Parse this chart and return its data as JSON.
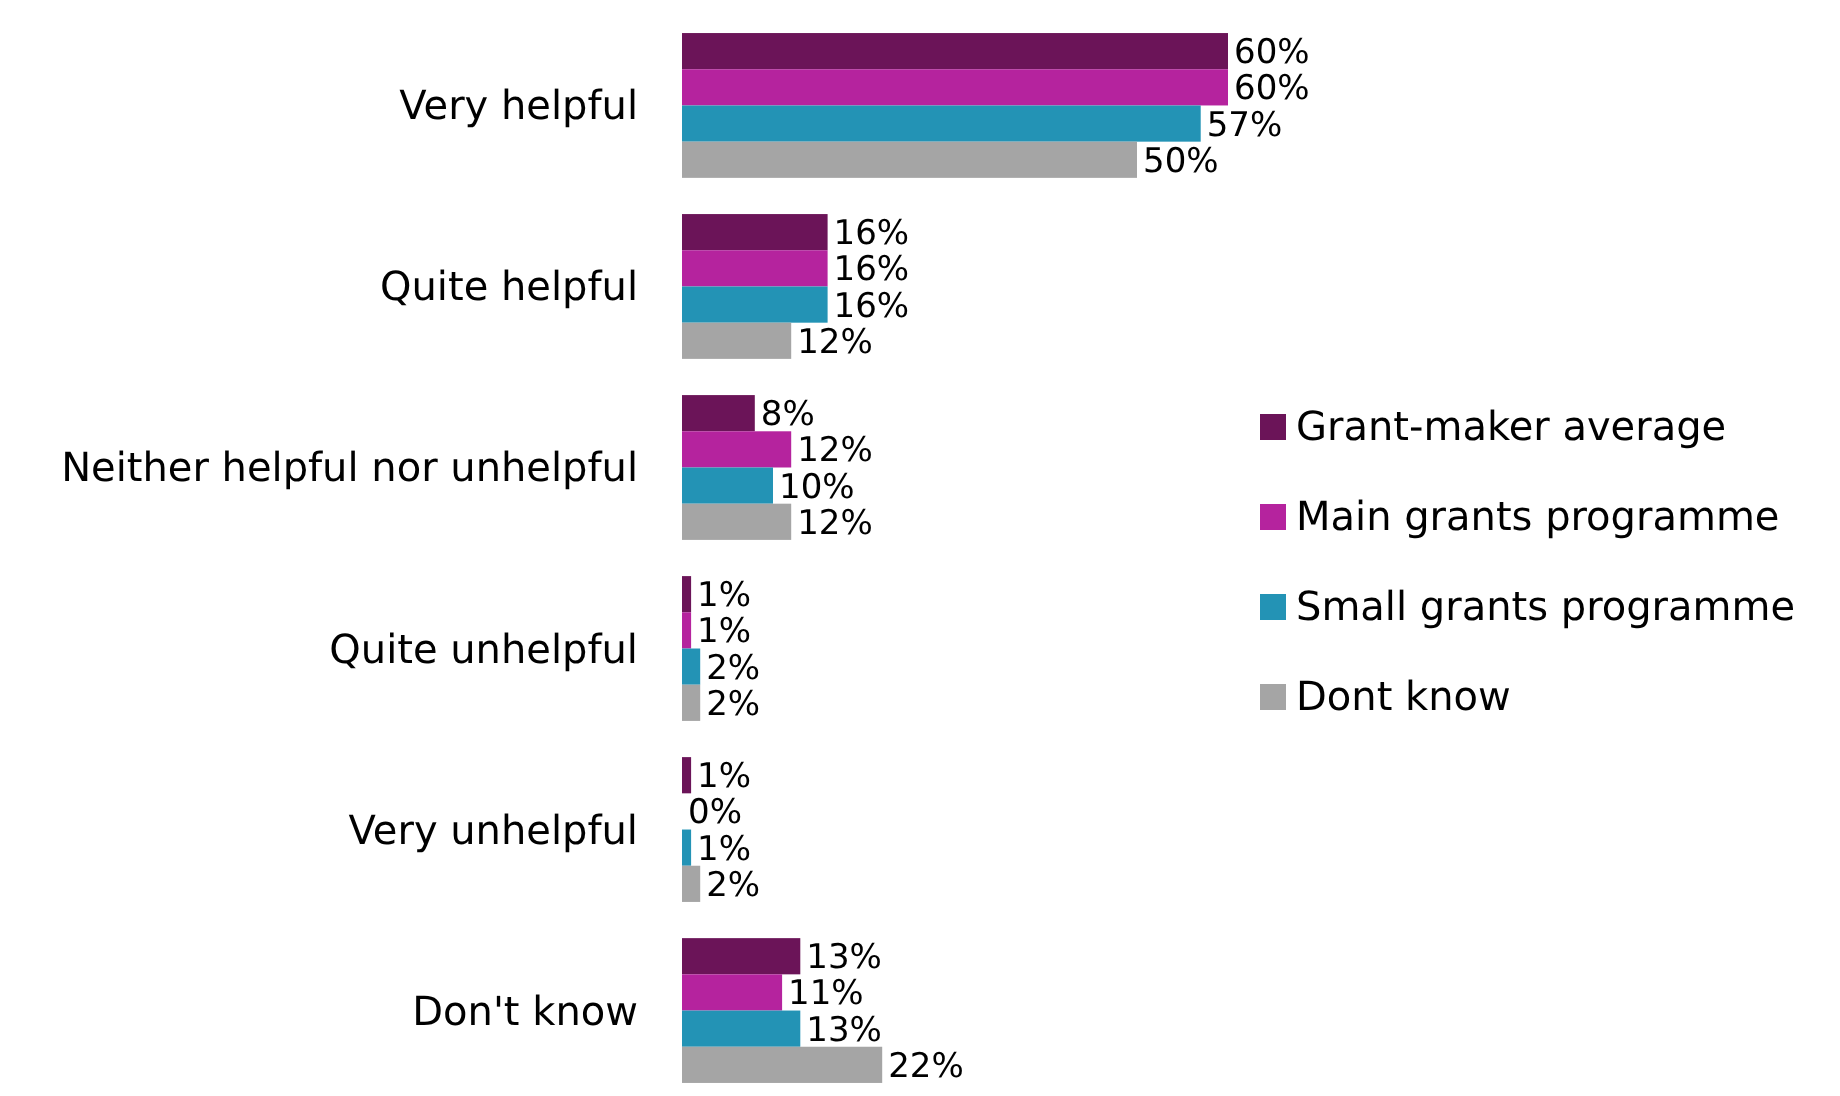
{
  "chart_data": {
    "type": "bar",
    "orientation": "horizontal",
    "legend": "right",
    "categories": [
      "Very helpful",
      "Quite helpful",
      "Neither helpful nor unhelpful",
      "Quite unhelpful",
      "Very unhelpful",
      "Don't know"
    ],
    "series": [
      {
        "name": "Grant-maker average",
        "color": "#6b1458",
        "values": [
          60,
          16,
          8,
          1,
          1,
          13
        ],
        "value_labels": [
          "60%",
          "16%",
          "8%",
          "1%",
          "1%",
          "13%"
        ]
      },
      {
        "name": "Main grants programme",
        "color": "#b5239e",
        "values": [
          60,
          16,
          12,
          1,
          0,
          11
        ],
        "value_labels": [
          "60%",
          "16%",
          "12%",
          "1%",
          "0%",
          "11%"
        ]
      },
      {
        "name": "Small grants programme",
        "color": "#2393b5",
        "values": [
          57,
          16,
          10,
          2,
          1,
          13
        ],
        "value_labels": [
          "57%",
          "16%",
          "10%",
          "2%",
          "1%",
          "13%"
        ]
      },
      {
        "name": "Dont know",
        "color": "#a5a5a5",
        "values": [
          50,
          12,
          12,
          2,
          2,
          22
        ],
        "value_labels": [
          "50%",
          "12%",
          "12%",
          "2%",
          "2%",
          "22%"
        ]
      }
    ]
  }
}
